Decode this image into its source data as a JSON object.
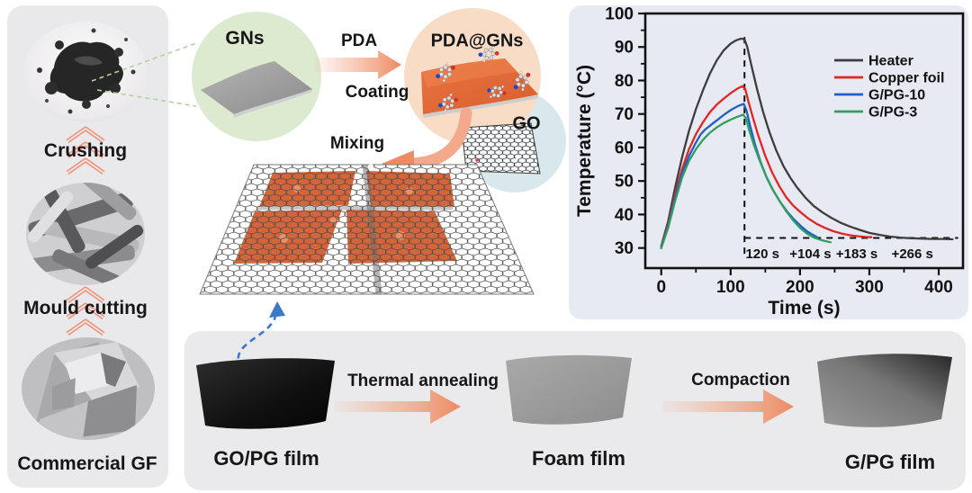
{
  "left_panel": {
    "steps": [
      {
        "label": "Crushing"
      },
      {
        "label": "Mould cutting"
      }
    ],
    "caption": "Commercial GF",
    "photos": [
      "graphite-powder-photo",
      "cut-graphite-strips-photo",
      "commercial-gf-foil-photo"
    ]
  },
  "scheme": {
    "gns_label": "GNs",
    "arrow_top_label": "PDA",
    "arrow_bottom_label": "Coating",
    "pda_gns_label": "PDA@GNs",
    "go_label": "GO",
    "mixing_label": "Mixing"
  },
  "bottom_panel": {
    "films": [
      {
        "label": "GO/PG film"
      },
      {
        "label": "Foam film"
      },
      {
        "label": "G/PG film"
      }
    ],
    "arrows": [
      {
        "label": "Thermal annealing"
      },
      {
        "label": "Compaction"
      }
    ]
  },
  "colors": {
    "accent_salmon": "#ee8a62",
    "chevron": "#f09078",
    "gns_circle": "#dcead0",
    "pda_circle": "#f8dcc6",
    "go_circle": "#d9e8ec",
    "heater": "#3d3d3d",
    "copper_foil": "#e42522",
    "gpg10": "#1f5ec9",
    "gpg3": "#2f9e5f",
    "dashed_blue_arrow": "#3a7ac8"
  },
  "chart_data": {
    "type": "line",
    "title": "",
    "xlabel": "Time (s)",
    "ylabel": "Temperature (°C)",
    "xlim": [
      -23,
      435
    ],
    "ylim": [
      24,
      100
    ],
    "xticks": [
      0,
      100,
      200,
      300,
      400
    ],
    "yticks": [
      30,
      40,
      50,
      60,
      70,
      80,
      90,
      100
    ],
    "grid": false,
    "legend_position": "upper right",
    "series": [
      {
        "name": "Heater",
        "color": "#3d3d3d",
        "points": [
          [
            0,
            30.5
          ],
          [
            10,
            38
          ],
          [
            20,
            48
          ],
          [
            30,
            57
          ],
          [
            40,
            65
          ],
          [
            50,
            71.5
          ],
          [
            60,
            77
          ],
          [
            70,
            82
          ],
          [
            80,
            86
          ],
          [
            90,
            89
          ],
          [
            100,
            91
          ],
          [
            108,
            92
          ],
          [
            115,
            92.5
          ],
          [
            120,
            92.3
          ],
          [
            124,
            90
          ],
          [
            130,
            84.5
          ],
          [
            138,
            77.5
          ],
          [
            147,
            70.5
          ],
          [
            156,
            64.5
          ],
          [
            166,
            59
          ],
          [
            176,
            54.5
          ],
          [
            186,
            51
          ],
          [
            196,
            48
          ],
          [
            208,
            45
          ],
          [
            220,
            42.5
          ],
          [
            232,
            40.7
          ],
          [
            245,
            39
          ],
          [
            258,
            37.6
          ],
          [
            272,
            36.4
          ],
          [
            286,
            35.4
          ],
          [
            300,
            34.5
          ],
          [
            315,
            33.9
          ],
          [
            330,
            33.4
          ],
          [
            345,
            33.1
          ],
          [
            360,
            32.9
          ],
          [
            375,
            32.8
          ],
          [
            390,
            32.7
          ],
          [
            405,
            32.7
          ],
          [
            420,
            32.6
          ]
        ]
      },
      {
        "name": "Copper foil",
        "color": "#e42522",
        "points": [
          [
            0,
            30
          ],
          [
            10,
            37
          ],
          [
            20,
            46
          ],
          [
            30,
            53.5
          ],
          [
            40,
            59.5
          ],
          [
            50,
            64
          ],
          [
            60,
            67.5
          ],
          [
            70,
            70.5
          ],
          [
            80,
            72.8
          ],
          [
            90,
            74.6
          ],
          [
            100,
            76.2
          ],
          [
            110,
            77.6
          ],
          [
            117,
            78.3
          ],
          [
            121,
            77.5
          ],
          [
            126,
            73.5
          ],
          [
            132,
            69
          ],
          [
            140,
            63.5
          ],
          [
            150,
            57.5
          ],
          [
            160,
            52.5
          ],
          [
            170,
            48.5
          ],
          [
            180,
            45.2
          ],
          [
            190,
            42.7
          ],
          [
            200,
            40.8
          ],
          [
            212,
            38.8
          ],
          [
            224,
            37.2
          ],
          [
            236,
            36
          ],
          [
            248,
            35
          ],
          [
            260,
            34.3
          ],
          [
            272,
            33.8
          ],
          [
            284,
            33.5
          ],
          [
            295,
            33.3
          ],
          [
            303,
            33.2
          ]
        ]
      },
      {
        "name": "G/PG-10",
        "color": "#1f5ec9",
        "points": [
          [
            0,
            30
          ],
          [
            10,
            36.5
          ],
          [
            20,
            45
          ],
          [
            30,
            52
          ],
          [
            40,
            57.5
          ],
          [
            50,
            61.5
          ],
          [
            57,
            64
          ],
          [
            63,
            65.3
          ],
          [
            72,
            66.8
          ],
          [
            82,
            68.4
          ],
          [
            92,
            70
          ],
          [
            102,
            71.4
          ],
          [
            112,
            72.5
          ],
          [
            119,
            73
          ],
          [
            123,
            71
          ],
          [
            128,
            66.5
          ],
          [
            135,
            61
          ],
          [
            143,
            55.8
          ],
          [
            152,
            51
          ],
          [
            161,
            47.3
          ],
          [
            171,
            43.9
          ],
          [
            181,
            41
          ],
          [
            191,
            38.6
          ],
          [
            201,
            36.6
          ],
          [
            210,
            35
          ],
          [
            218,
            34
          ],
          [
            224,
            33.3
          ]
        ]
      },
      {
        "name": "G/PG-3",
        "color": "#2f9e5f",
        "points": [
          [
            0,
            30
          ],
          [
            10,
            36
          ],
          [
            20,
            44
          ],
          [
            30,
            51
          ],
          [
            40,
            56
          ],
          [
            50,
            59.5
          ],
          [
            60,
            62.3
          ],
          [
            70,
            64.4
          ],
          [
            80,
            66
          ],
          [
            90,
            67.3
          ],
          [
            100,
            68.3
          ],
          [
            110,
            69.2
          ],
          [
            118,
            69.8
          ],
          [
            122,
            68.8
          ],
          [
            127,
            65
          ],
          [
            134,
            60.5
          ],
          [
            142,
            56
          ],
          [
            151,
            51.5
          ],
          [
            160,
            47.7
          ],
          [
            170,
            44.2
          ],
          [
            180,
            41
          ],
          [
            190,
            38.3
          ],
          [
            200,
            36
          ],
          [
            210,
            34.3
          ],
          [
            220,
            33.1
          ],
          [
            230,
            32.4
          ],
          [
            238,
            32
          ],
          [
            244,
            31.7
          ]
        ]
      }
    ],
    "dashed_lines": {
      "vertical_x": 120,
      "horizontal_y": 33
    },
    "annotations": [
      {
        "text": "120 s",
        "x": 146,
        "y": 27
      },
      {
        "text": "+104 s",
        "x": 215,
        "y": 27
      },
      {
        "text": "+183 s",
        "x": 282,
        "y": 27
      },
      {
        "text": "+266 s",
        "x": 362,
        "y": 27
      }
    ]
  }
}
